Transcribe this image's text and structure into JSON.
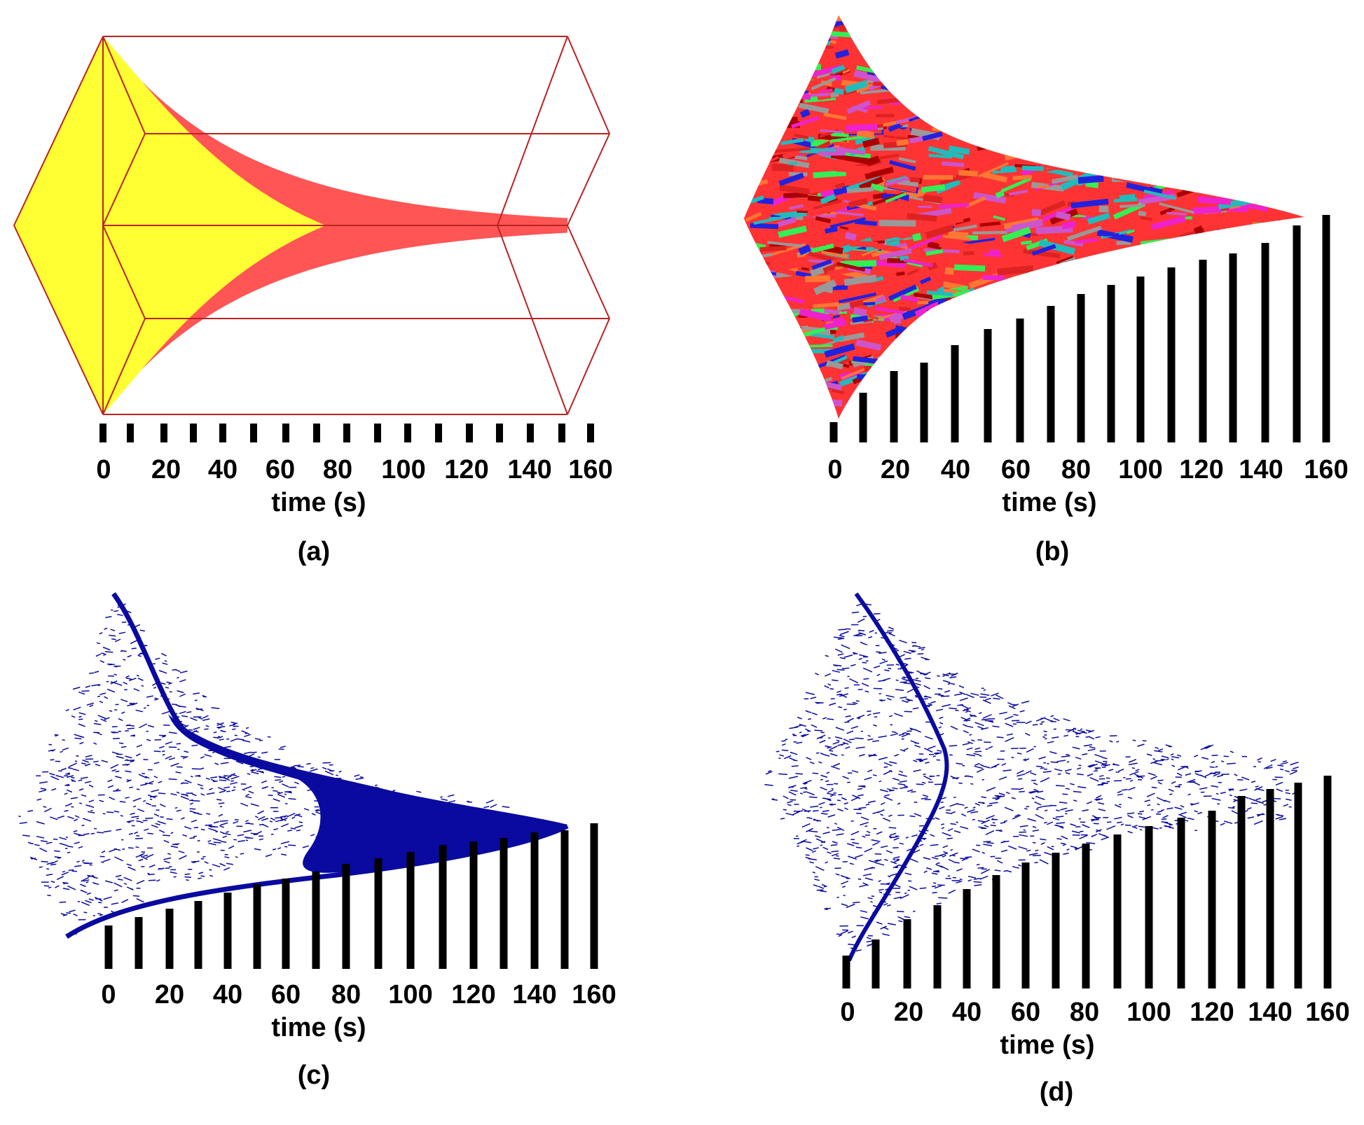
{
  "figure": {
    "panels": [
      {
        "id": "a",
        "caption": "(a)",
        "xlabel": "time (s)",
        "ticks": [
          "0",
          "20",
          "40",
          "60",
          "80",
          "100",
          "120",
          "140",
          "160"
        ]
      },
      {
        "id": "b",
        "caption": "(b)",
        "xlabel": "time (s)",
        "ticks": [
          "0",
          "20",
          "40",
          "60",
          "80",
          "100",
          "120",
          "140",
          "160"
        ]
      },
      {
        "id": "c",
        "caption": "(c)",
        "xlabel": "time (s)",
        "ticks": [
          "0",
          "20",
          "40",
          "60",
          "80",
          "100",
          "120",
          "140",
          "160"
        ]
      },
      {
        "id": "d",
        "caption": "(d)",
        "xlabel": "time (s)",
        "ticks": [
          "0",
          "20",
          "40",
          "60",
          "80",
          "100",
          "120",
          "140",
          "160"
        ]
      }
    ]
  },
  "colors": {
    "yellow_fill": "#ffff33",
    "red_fill": "#ff5555",
    "box_edge": "#bb2222",
    "blue": "#0a0aa0",
    "tick": "#000000",
    "mosaic": [
      "#ff3333",
      "#dd2222",
      "#cc55cc",
      "#ee22cc",
      "#22bbbb",
      "#33ee55",
      "#999999",
      "#ff7733",
      "#2222dd",
      "#aa0000"
    ]
  }
}
